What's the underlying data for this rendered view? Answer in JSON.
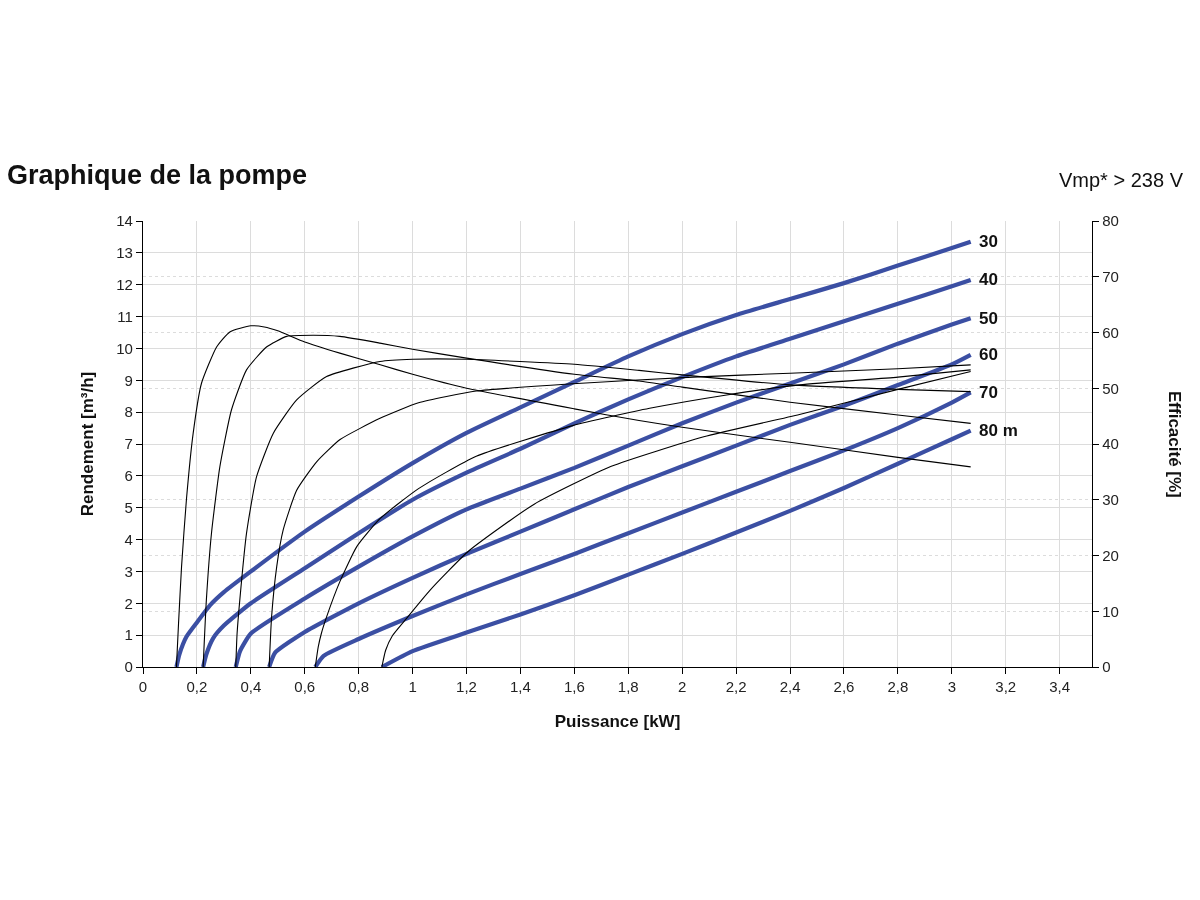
{
  "chart_data": {
    "type": "line",
    "title": "Graphique de la pompe",
    "annotations": [
      "Vmp* > 238 V"
    ],
    "xlabel": "Puissance [kW]",
    "ylabel": "Rendement [m³/h]",
    "y2label": "Efficacité [%]",
    "xlim": [
      0,
      3.52
    ],
    "xticks": [
      0,
      {
        "value": 0.2,
        "label": "0,2"
      },
      {
        "value": 0.4,
        "label": "0,4"
      },
      {
        "value": 0.6,
        "label": "0,6"
      },
      {
        "value": 0.8,
        "label": "0,8"
      },
      1,
      {
        "value": 1.2,
        "label": "1,2"
      },
      {
        "value": 1.4,
        "label": "1,4"
      },
      {
        "value": 1.6,
        "label": "1,6"
      },
      {
        "value": 1.8,
        "label": "1,8"
      },
      2,
      {
        "value": 2.2,
        "label": "2,2"
      },
      {
        "value": 2.4,
        "label": "2,4"
      },
      {
        "value": 2.6,
        "label": "2,6"
      },
      {
        "value": 2.8,
        "label": "2,8"
      },
      3,
      {
        "value": 3.2,
        "label": "3,2"
      },
      {
        "value": 3.4,
        "label": "3,4"
      }
    ],
    "ylim": [
      0,
      14
    ],
    "yticks": [
      0,
      1,
      2,
      3,
      4,
      5,
      6,
      7,
      8,
      9,
      10,
      11,
      12,
      13,
      14
    ],
    "y2lim": [
      0,
      80
    ],
    "y2ticks": [
      0,
      10,
      20,
      30,
      40,
      50,
      60,
      70,
      80
    ],
    "grid": true,
    "legend": false,
    "marker": "none",
    "line_style": "solid",
    "series": [
      {
        "name": "30",
        "color": "#3b4fa3",
        "x": [
          0.124,
          0.135,
          0.161,
          0.2,
          0.25,
          0.3,
          0.4,
          0.6,
          0.8,
          1.0,
          1.2,
          1.4,
          1.6,
          1.8,
          2.0,
          2.2,
          2.4,
          2.6,
          2.8,
          3.0,
          3.07
        ],
        "values": [
          0,
          0.4,
          0.95,
          1.4,
          1.95,
          2.35,
          3.0,
          4.25,
          5.35,
          6.4,
          7.35,
          8.15,
          8.95,
          9.75,
          10.45,
          11.05,
          11.55,
          12.05,
          12.6,
          13.15,
          13.35
        ]
      },
      {
        "name": "40",
        "color": "#3b4fa3",
        "x": [
          0.223,
          0.235,
          0.26,
          0.3,
          0.4,
          0.6,
          0.8,
          1.0,
          1.2,
          1.4,
          1.6,
          1.8,
          2.0,
          2.2,
          2.4,
          2.6,
          2.8,
          3.0,
          3.07
        ],
        "values": [
          0,
          0.4,
          0.9,
          1.3,
          2.0,
          3.1,
          4.2,
          5.25,
          6.1,
          6.85,
          7.65,
          8.4,
          9.1,
          9.75,
          10.3,
          10.85,
          11.4,
          11.95,
          12.15
        ]
      },
      {
        "name": "50",
        "color": "#3b4fa3",
        "x": [
          0.344,
          0.36,
          0.4,
          0.6,
          0.8,
          1.0,
          1.2,
          1.4,
          1.6,
          1.8,
          2.0,
          2.2,
          2.4,
          2.6,
          2.8,
          3.0,
          3.07
        ],
        "values": [
          0,
          0.5,
          1.05,
          2.15,
          3.15,
          4.1,
          4.95,
          5.6,
          6.25,
          6.95,
          7.65,
          8.3,
          8.9,
          9.5,
          10.15,
          10.75,
          10.95
        ]
      },
      {
        "name": "60",
        "color": "#3b4fa3",
        "x": [
          0.468,
          0.49,
          0.6,
          0.8,
          1.0,
          1.2,
          1.4,
          1.6,
          1.8,
          2.0,
          2.2,
          2.4,
          2.6,
          2.8,
          3.0,
          3.07
        ],
        "values": [
          0,
          0.45,
          1.1,
          2.0,
          2.8,
          3.55,
          4.25,
          4.95,
          5.65,
          6.3,
          6.95,
          7.6,
          8.2,
          8.85,
          9.5,
          9.8
        ]
      },
      {
        "name": "70",
        "color": "#3b4fa3",
        "x": [
          0.639,
          0.67,
          0.8,
          1.0,
          1.2,
          1.4,
          1.6,
          1.8,
          2.0,
          2.2,
          2.4,
          2.6,
          2.8,
          3.0,
          3.07
        ],
        "values": [
          0,
          0.35,
          0.88,
          1.6,
          2.28,
          2.92,
          3.55,
          4.2,
          4.85,
          5.5,
          6.15,
          6.8,
          7.5,
          8.3,
          8.62
        ]
      },
      {
        "name": "80 m",
        "color": "#3b4fa3",
        "x": [
          0.886,
          1.0,
          1.2,
          1.4,
          1.6,
          1.8,
          2.0,
          2.2,
          2.4,
          2.6,
          2.8,
          3.0,
          3.07
        ],
        "values": [
          0,
          0.5,
          1.08,
          1.65,
          2.25,
          2.9,
          3.55,
          4.22,
          4.9,
          5.62,
          6.38,
          7.15,
          7.42
        ]
      },
      {
        "color": "#000000",
        "axis": "y2",
        "x": [
          0.124,
          0.132,
          0.143,
          0.161,
          0.186,
          0.217,
          0.273,
          0.322,
          0.4,
          0.45,
          0.5,
          0.6,
          0.73,
          0.88,
          1.0,
          1.2,
          1.6,
          1.84,
          2.0,
          2.4,
          2.8,
          3.07
        ],
        "values": [
          0,
          8,
          18,
          30,
          41.9,
          50.9,
          57.4,
          60.1,
          61.2,
          61,
          60.3,
          58.3,
          56.3,
          54.2,
          52.5,
          50,
          46.3,
          44.2,
          43,
          40.3,
          37.6,
          35.9
        ]
      },
      {
        "color": "#000000",
        "axis": "y2",
        "x": [
          0.223,
          0.235,
          0.254,
          0.285,
          0.328,
          0.384,
          0.458,
          0.533,
          0.632,
          0.73,
          0.879,
          1.0,
          1.2,
          1.6,
          1.84,
          2.0,
          2.4,
          2.8,
          3.07
        ],
        "values": [
          0,
          12,
          24,
          35.9,
          46.1,
          53.3,
          57.4,
          59.3,
          59.5,
          59.3,
          58.1,
          57,
          55.4,
          52.5,
          51.3,
          50.2,
          47.5,
          45.2,
          43.7
        ]
      },
      {
        "color": "#000000",
        "axis": "y2",
        "x": [
          0.344,
          0.349,
          0.359,
          0.384,
          0.421,
          0.483,
          0.57,
          0.681,
          0.879,
          1.0,
          1.2,
          1.6,
          1.84,
          2.0,
          2.4,
          2.8,
          3.07
        ],
        "values": [
          0,
          6,
          12,
          24,
          34.1,
          41.9,
          47.9,
          52.1,
          54.8,
          55.2,
          55.2,
          54.3,
          53.2,
          52.4,
          50.6,
          49.8,
          49.4
        ]
      },
      {
        "color": "#000000",
        "axis": "y2",
        "x": [
          0.468,
          0.477,
          0.496,
          0.52,
          0.57,
          0.644,
          0.731,
          0.879,
          1.022,
          1.236,
          1.594,
          2.04,
          2.4,
          2.8,
          3.07
        ],
        "values": [
          0,
          9,
          18,
          24.6,
          31.7,
          36.8,
          40.8,
          44.6,
          47.4,
          49.5,
          50.8,
          52,
          52.7,
          53.5,
          54.2
        ]
      },
      {
        "color": "#000000",
        "axis": "y2",
        "x": [
          0.639,
          0.65,
          0.662,
          0.681,
          0.731,
          0.793,
          0.879,
          1.022,
          1.236,
          1.594,
          1.879,
          2.165,
          2.436,
          2.8,
          3.07
        ],
        "values": [
          0,
          3.6,
          6.1,
          9,
          15.4,
          21.6,
          26.6,
          32,
          37.8,
          43.3,
          46.4,
          48.8,
          50.6,
          52,
          53.3
        ]
      },
      {
        "color": "#000000",
        "axis": "y2",
        "x": [
          0.886,
          0.9,
          0.925,
          0.972,
          1.065,
          1.208,
          1.451,
          1.737,
          2.08,
          2.435,
          2.8,
          3.07
        ],
        "values": [
          0,
          3,
          5.6,
          8.4,
          13.8,
          20.8,
          29.2,
          36,
          41.3,
          45.3,
          49.8,
          53
        ]
      }
    ]
  }
}
